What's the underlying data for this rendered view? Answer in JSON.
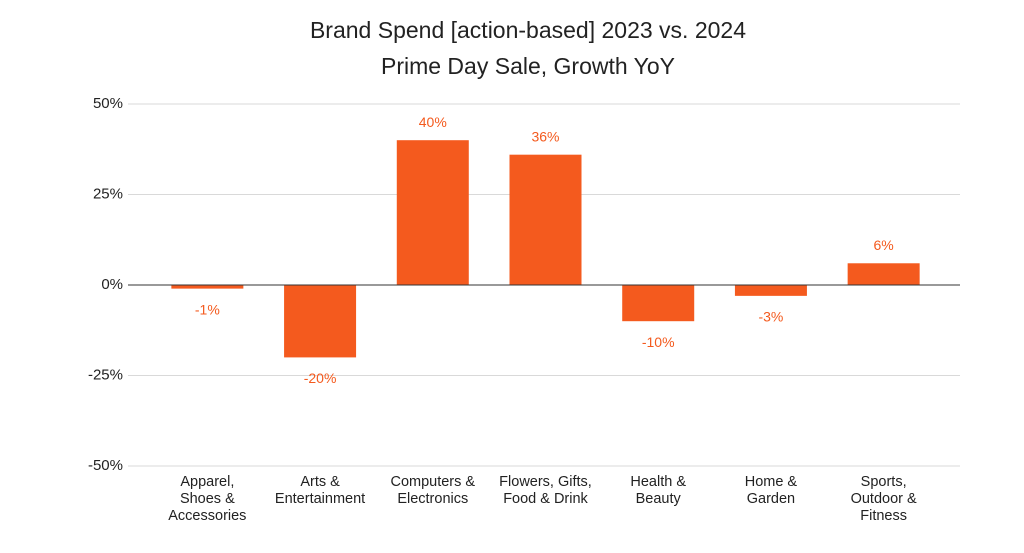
{
  "chart_data": {
    "type": "bar",
    "title": "Brand Spend [action-based] 2023 vs. 2024",
    "subtitle": "Prime Day Sale, Growth YoY",
    "categories": [
      [
        "Apparel,",
        "Shoes &",
        "Accessories"
      ],
      [
        "Arts &",
        "Entertainment"
      ],
      [
        "Computers &",
        "Electronics"
      ],
      [
        "Flowers, Gifts,",
        "Food & Drink"
      ],
      [
        "Health &",
        "Beauty"
      ],
      [
        "Home &",
        "Garden"
      ],
      [
        "Sports,",
        "Outdoor &",
        "Fitness"
      ]
    ],
    "values": [
      -1,
      -20,
      40,
      36,
      -10,
      -3,
      6
    ],
    "value_labels": [
      "-1%",
      "-20%",
      "40%",
      "36%",
      "-10%",
      "-3%",
      "6%"
    ],
    "color": "#f45a1e",
    "ylim": [
      -50,
      50
    ],
    "yticks": [
      {
        "value": -50,
        "label": "-50%"
      },
      {
        "value": -25,
        "label": "-25%"
      },
      {
        "value": 0,
        "label": "0%"
      },
      {
        "value": 25,
        "label": "25%"
      },
      {
        "value": 50,
        "label": "50%"
      }
    ],
    "grid": true
  }
}
